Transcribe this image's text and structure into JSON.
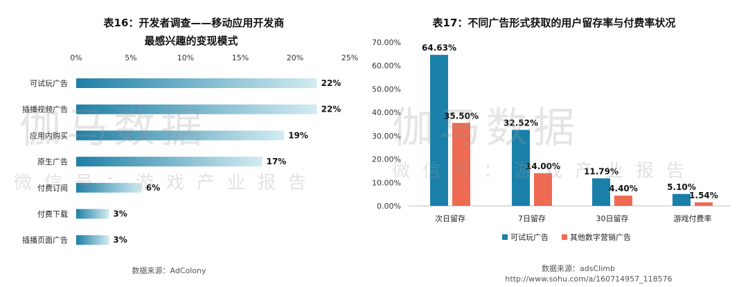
{
  "watermark": {
    "main": "伽马数据",
    "sub": "微信号：游戏产业报告"
  },
  "chart_data": [
    {
      "type": "bar",
      "orientation": "horizontal",
      "title": [
        "表16：开发者调查——移动应用开发商",
        "最感兴趣的变现模式"
      ],
      "categories": [
        "可试玩广告",
        "插播视频广告",
        "应用内购买",
        "原生广告",
        "付费订阅",
        "付费下载",
        "插播页面广告"
      ],
      "values": [
        22,
        22,
        19,
        17,
        6,
        3,
        3
      ],
      "value_labels": [
        "22%",
        "22%",
        "19%",
        "17%",
        "6%",
        "3%",
        "3%"
      ],
      "xlim": [
        0,
        25
      ],
      "xticks": [
        "0%",
        "5%",
        "10%",
        "15%",
        "20%",
        "25%"
      ],
      "axis_position": "top",
      "bar_color": "#1f7fa6",
      "bar_color_light": "#d2ecf1",
      "source": "数据来源：AdColony"
    },
    {
      "type": "bar",
      "title": "表17：不同广告形式获取的用户留存率与付费率状况",
      "categories": [
        "次日留存",
        "7日留存",
        "30日留存",
        "游戏付费率"
      ],
      "series": [
        {
          "name": "可试玩广告",
          "color": "#1a80aa",
          "values": [
            64.63,
            32.52,
            11.79,
            5.1
          ],
          "labels": [
            "64.63%",
            "32.52%",
            "11.79%",
            "5.10%"
          ]
        },
        {
          "name": "其他数字营销广告",
          "color": "#ee6a52",
          "values": [
            35.5,
            14.0,
            4.4,
            1.54
          ],
          "labels": [
            "35.50%",
            "14.00%",
            "4.40%",
            "1.54%"
          ]
        }
      ],
      "ylim": [
        0,
        70
      ],
      "yticks": [
        "0.00%",
        "10.00%",
        "20.00%",
        "30.00%",
        "40.00%",
        "50.00%",
        "60.00%",
        "70.00%"
      ],
      "legend": "bottom",
      "source": [
        "数据来源：adsClimb",
        "http://www.sohu.com/a/160714957_118576"
      ]
    }
  ]
}
